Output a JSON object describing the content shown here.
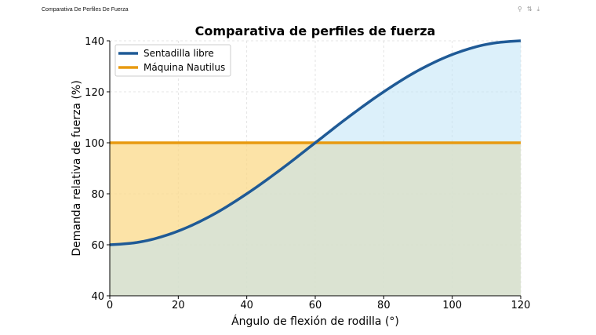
{
  "header": {
    "title": "Comparativa De Perfiles De Fuerza",
    "icons": [
      "pin-icon",
      "refresh-icon",
      "download-icon"
    ]
  },
  "chart_data": {
    "type": "area",
    "title": "Comparativa de perfiles de fuerza",
    "xlabel": "Ángulo de flexión de rodilla (°)",
    "ylabel": "Demanda relativa de fuerza (%)",
    "xlim": [
      0,
      120
    ],
    "ylim": [
      40,
      140
    ],
    "xticks": [
      0,
      20,
      40,
      60,
      80,
      100,
      120
    ],
    "yticks": [
      40,
      60,
      80,
      100,
      120,
      140
    ],
    "grid": true,
    "legend": "top-left",
    "x": [
      0,
      10,
      20,
      30,
      40,
      50,
      60,
      70,
      80,
      90,
      100,
      110,
      120
    ],
    "series": [
      {
        "name": "Sentadilla libre",
        "color": "#1f5a96",
        "fill": "#bfe3f5",
        "values": [
          60,
          61.4,
          65.4,
          71.7,
          80,
          89.6,
          100,
          110.4,
          120,
          128.3,
          134.6,
          138.6,
          140
        ]
      },
      {
        "name": "Máquina Nautilus",
        "color": "#e89a10",
        "fill": "#fbd98a",
        "values": [
          100,
          100,
          100,
          100,
          100,
          100,
          100,
          100,
          100,
          100,
          100,
          100,
          100
        ]
      }
    ]
  }
}
